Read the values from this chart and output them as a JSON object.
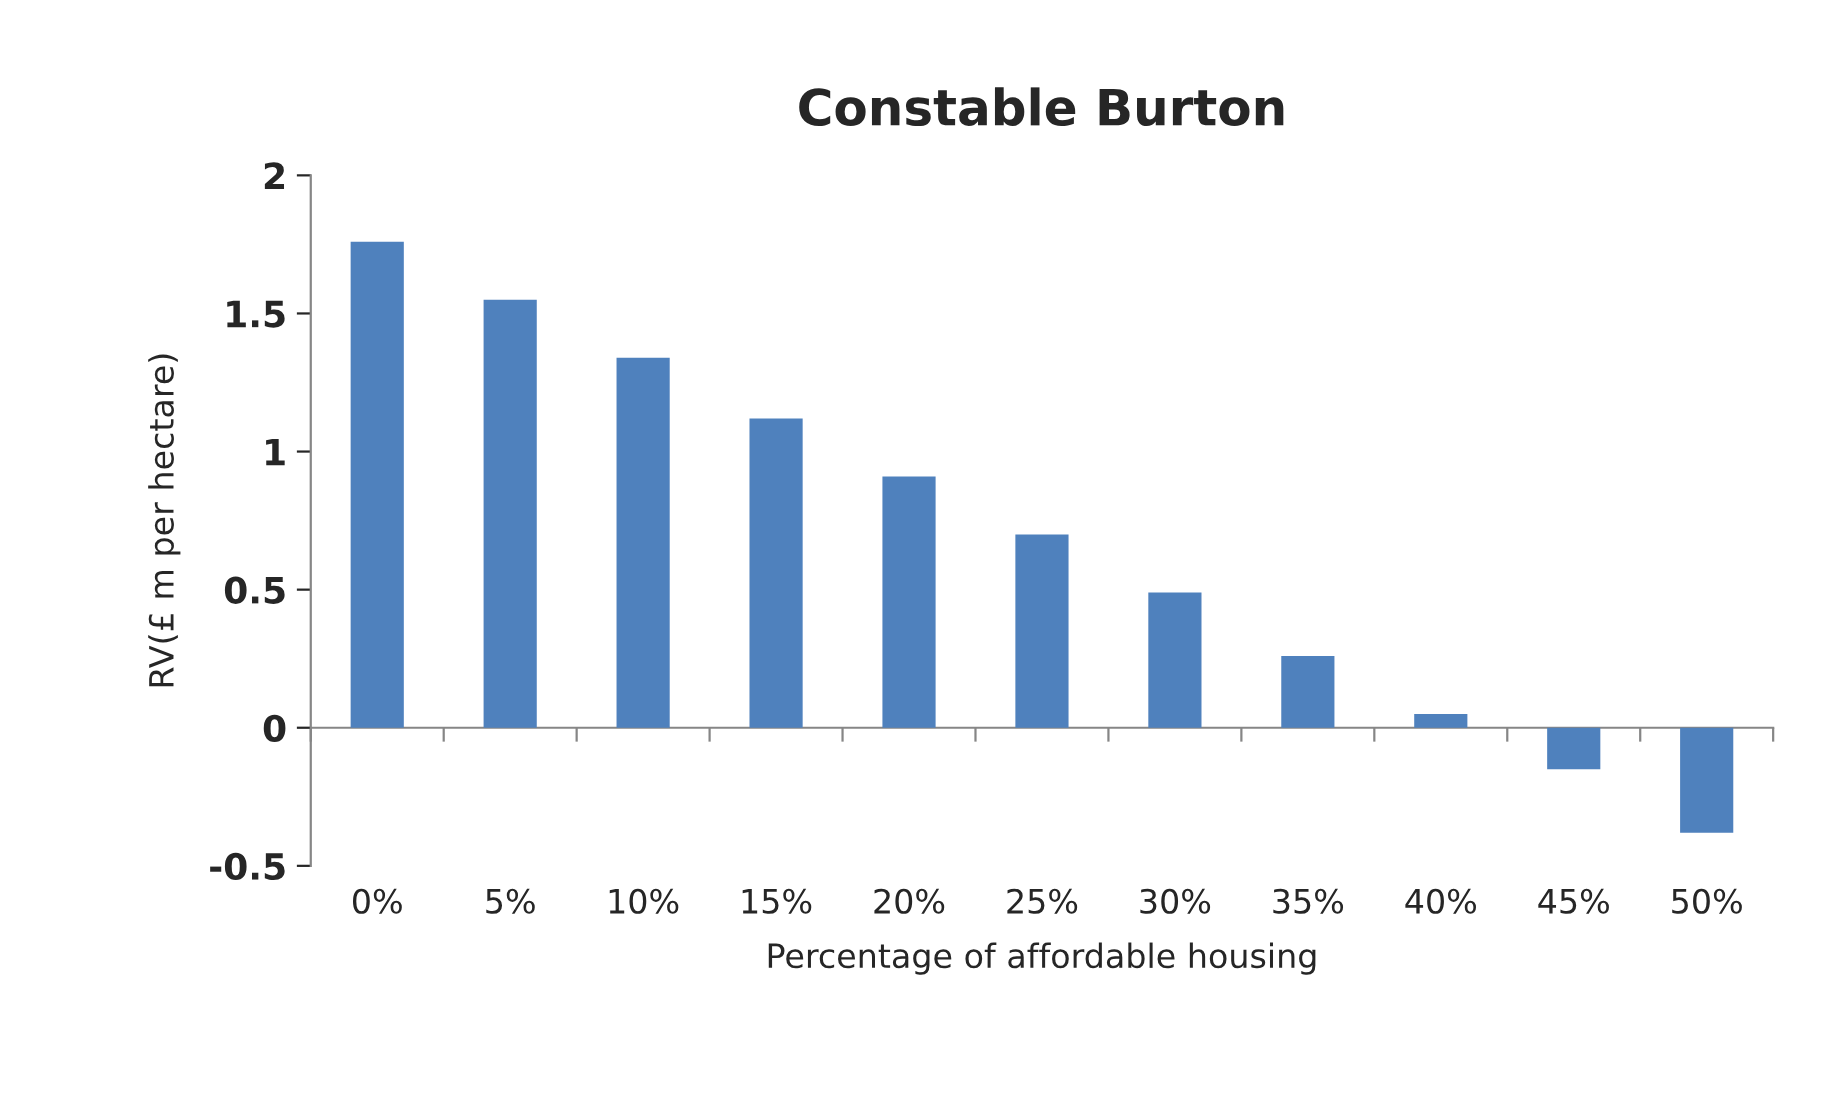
{
  "chart_data": {
    "type": "bar",
    "title": "Constable Burton",
    "xlabel": "Percentage of affordable housing",
    "ylabel": "RV(£ m per hectare)",
    "categories": [
      "0%",
      "5%",
      "10%",
      "15%",
      "20%",
      "25%",
      "30%",
      "35%",
      "40%",
      "45%",
      "50%"
    ],
    "values": [
      1.76,
      1.55,
      1.34,
      1.12,
      0.91,
      0.7,
      0.49,
      0.26,
      0.05,
      -0.15,
      -0.38
    ],
    "color": "#4f81bd",
    "ylim": [
      -0.5,
      2
    ],
    "yticks": [
      -0.5,
      0,
      0.5,
      1,
      1.5,
      2
    ]
  }
}
